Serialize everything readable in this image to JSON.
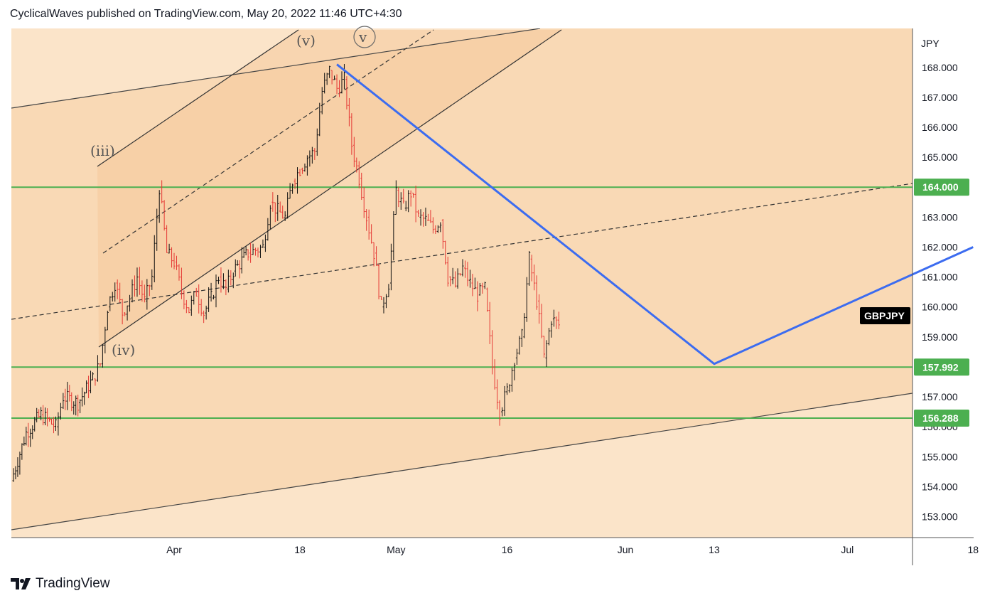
{
  "header": {
    "text": "CyclicalWaves published on TradingView.com, May 20, 2022 11:46 UTC+4:30"
  },
  "footer": {
    "brand": "TradingView",
    "logo_icon": "tradingview-logo-icon"
  },
  "chart_data": {
    "type": "candlestick",
    "symbol": "GBPJPY",
    "currency": "JPY",
    "x_tick_labels": [
      "Apr",
      "18",
      "May",
      "16",
      "Jun",
      "13",
      "Jul",
      "18"
    ],
    "y_tick_labels": [
      "153.000",
      "154.000",
      "155.000",
      "156.000",
      "157.000",
      "158.000",
      "159.000",
      "160.000",
      "161.000",
      "162.000",
      "163.000",
      "164.000",
      "165.000",
      "166.000",
      "167.000",
      "168.000"
    ],
    "ylim": [
      152.3,
      169.3
    ],
    "horizontal_levels": [
      {
        "value": 164.0,
        "label": "164.000",
        "color": "#4caf50"
      },
      {
        "value": 157.992,
        "label": "157.992",
        "color": "#4caf50"
      },
      {
        "value": 156.288,
        "label": "156.288",
        "color": "#4caf50"
      }
    ],
    "wave_labels": [
      "(iii)",
      "(iv)",
      "(v)",
      "v"
    ],
    "projection": {
      "color": "#3c6cf0",
      "points": [
        {
          "x": "2022-04-23",
          "y": 168.1
        },
        {
          "x": "2022-06-13",
          "y": 158.1
        },
        {
          "x": "2022-07-18",
          "y": 162.0
        }
      ]
    },
    "candles_path": [
      [
        "2022-03-10",
        154.2
      ],
      [
        "2022-03-12",
        155.8
      ],
      [
        "2022-03-14",
        156.4
      ],
      [
        "2022-03-16",
        156.0
      ],
      [
        "2022-03-17",
        157.0
      ],
      [
        "2022-03-19",
        156.8
      ],
      [
        "2022-03-21",
        157.6
      ],
      [
        "2022-03-22",
        158.1
      ],
      [
        "2022-03-23",
        160.0
      ],
      [
        "2022-03-24",
        160.8
      ],
      [
        "2022-03-25",
        159.8
      ],
      [
        "2022-03-26",
        160.3
      ],
      [
        "2022-03-27",
        161.0
      ],
      [
        "2022-03-28",
        160.2
      ],
      [
        "2022-03-29",
        161.0
      ],
      [
        "2022-03-30",
        164.0
      ],
      [
        "2022-03-31",
        161.8
      ],
      [
        "2022-04-01",
        161.5
      ],
      [
        "2022-04-02",
        160.5
      ],
      [
        "2022-04-03",
        159.9
      ],
      [
        "2022-04-04",
        160.5
      ],
      [
        "2022-04-05",
        159.8
      ],
      [
        "2022-04-06",
        160.3
      ],
      [
        "2022-04-07",
        161.0
      ],
      [
        "2022-04-08",
        160.6
      ],
      [
        "2022-04-09",
        161.2
      ],
      [
        "2022-04-11",
        161.8
      ],
      [
        "2022-04-12",
        161.9
      ],
      [
        "2022-04-13",
        162.0
      ],
      [
        "2022-04-14",
        163.5
      ],
      [
        "2022-04-15",
        163.2
      ],
      [
        "2022-04-16",
        163.0
      ],
      [
        "2022-04-17",
        164.2
      ],
      [
        "2022-04-18",
        164.6
      ],
      [
        "2022-04-19",
        165.0
      ],
      [
        "2022-04-20",
        165.2
      ],
      [
        "2022-04-21",
        167.2
      ],
      [
        "2022-04-22",
        167.9
      ],
      [
        "2022-04-23",
        167.3
      ],
      [
        "2022-04-24",
        167.6
      ],
      [
        "2022-04-25",
        165.4
      ],
      [
        "2022-04-26",
        164.3
      ],
      [
        "2022-04-27",
        163.0
      ],
      [
        "2022-04-28",
        161.8
      ],
      [
        "2022-04-29",
        160.0
      ],
      [
        "2022-04-30",
        160.8
      ],
      [
        "2022-05-01",
        163.9
      ],
      [
        "2022-05-02",
        163.3
      ],
      [
        "2022-05-03",
        163.8
      ],
      [
        "2022-05-04",
        163.0
      ],
      [
        "2022-05-05",
        162.9
      ],
      [
        "2022-05-06",
        162.6
      ],
      [
        "2022-05-07",
        162.9
      ],
      [
        "2022-05-08",
        161.0
      ],
      [
        "2022-05-09",
        160.7
      ],
      [
        "2022-05-10",
        161.3
      ],
      [
        "2022-05-11",
        160.8
      ],
      [
        "2022-05-12",
        160.4
      ],
      [
        "2022-05-13",
        160.6
      ],
      [
        "2022-05-14",
        158.0
      ],
      [
        "2022-05-15",
        156.5
      ],
      [
        "2022-05-16",
        157.2
      ],
      [
        "2022-05-17",
        158.3
      ],
      [
        "2022-05-18",
        159.0
      ],
      [
        "2022-05-19",
        161.6
      ],
      [
        "2022-05-20",
        160.2
      ],
      [
        "2022-05-21",
        158.3
      ],
      [
        "2022-05-22",
        159.6
      ],
      [
        "2022-05-23",
        159.4
      ]
    ]
  }
}
